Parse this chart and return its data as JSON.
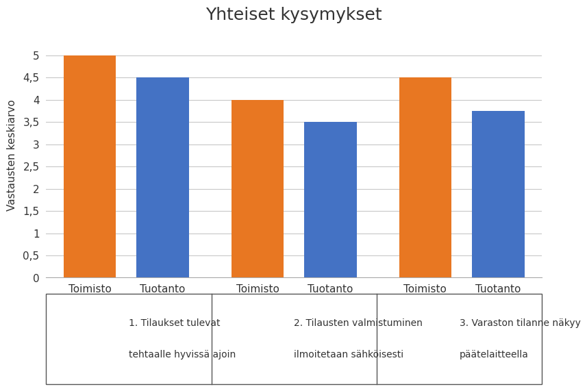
{
  "title": "Yhteiset kysymykset",
  "ylabel": "Vastausten keskiarvo",
  "categories": [
    "Toimisto",
    "Tuotanto",
    "Toimisto",
    "Tuotanto",
    "Toimisto",
    "Tuotanto"
  ],
  "values": [
    5.0,
    4.5,
    4.0,
    3.5,
    4.5,
    3.75
  ],
  "colors": [
    "#E87722",
    "#4472C4",
    "#E87722",
    "#4472C4",
    "#E87722",
    "#4472C4"
  ],
  "ylim": [
    0,
    5.5
  ],
  "yticks": [
    0,
    0.5,
    1,
    1.5,
    2,
    2.5,
    3,
    3.5,
    4,
    4.5,
    5
  ],
  "ytick_labels": [
    "0",
    "0,5",
    "1",
    "1,5",
    "2",
    "2,5",
    "3",
    "3,5",
    "4",
    "4,5",
    "5"
  ],
  "legend_texts": [
    "1. Tilaukset tulevat\n\ntehtaalle hyvissä ajoin",
    "2. Tilausten valmistuminen\n\nilmoitetaan sähköisesti",
    "3. Varaston tilanne näkyy\n\npäätelaitteella"
  ],
  "background_color": "#FFFFFF",
  "grid_color": "#C8C8C8",
  "title_fontsize": 18,
  "axis_label_fontsize": 11,
  "tick_fontsize": 11,
  "bar_width": 0.72,
  "group_positions": [
    0,
    1,
    2.3,
    3.3,
    4.6,
    5.6
  ]
}
